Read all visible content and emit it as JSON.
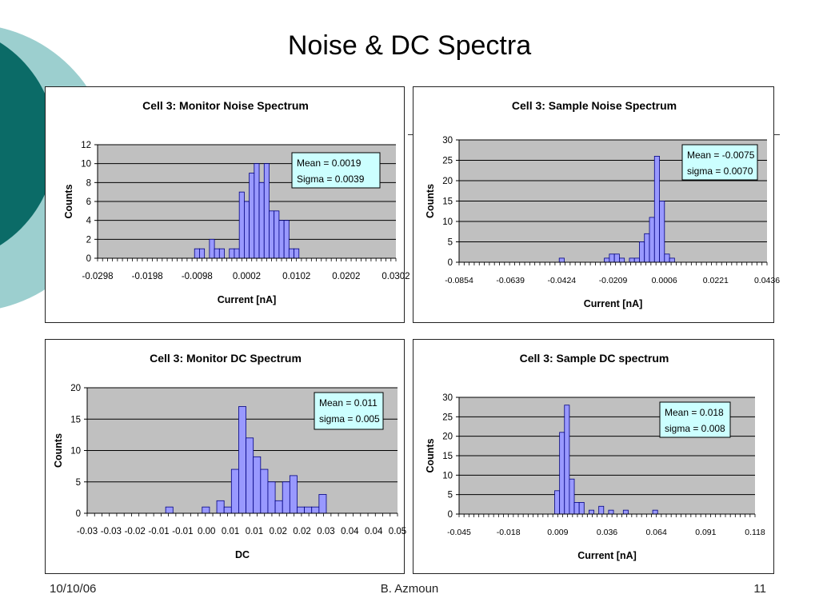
{
  "slide": {
    "title": "Noise & DC Spectra",
    "footer_date": "10/10/06",
    "footer_author": "B. Azmoun",
    "footer_page": "11"
  },
  "colors": {
    "bar_fill": "#9999ff",
    "bar_stroke": "#000080",
    "plot_bg": "#c0c0c0",
    "annotation_bg": "#ccffff",
    "deco_dark": "#0b6b67",
    "deco_light": "#9ccfcf"
  },
  "chart_data": [
    {
      "type": "bar",
      "title": "Cell 3: Monitor Noise Spectrum",
      "xlabel": "Current [nA]",
      "ylabel": "Counts",
      "ylim": [
        0,
        12
      ],
      "yticks": [
        "0",
        "2",
        "4",
        "6",
        "8",
        "10",
        "12"
      ],
      "xticks": [
        "-0.0298",
        "-0.0198",
        "-0.0098",
        "0.0002",
        "0.0102",
        "0.0202",
        "0.0302"
      ],
      "xlim": [
        -0.0298,
        0.0302
      ],
      "bin_width": 0.001,
      "bins": [
        {
          "x": -0.0098,
          "y": 1
        },
        {
          "x": -0.0088,
          "y": 1
        },
        {
          "x": -0.0068,
          "y": 2
        },
        {
          "x": -0.0058,
          "y": 1
        },
        {
          "x": -0.0048,
          "y": 1
        },
        {
          "x": -0.0028,
          "y": 1
        },
        {
          "x": -0.0018,
          "y": 1
        },
        {
          "x": -0.0008,
          "y": 7
        },
        {
          "x": 0.0002,
          "y": 6
        },
        {
          "x": 0.0012,
          "y": 9
        },
        {
          "x": 0.0022,
          "y": 10
        },
        {
          "x": 0.0032,
          "y": 8
        },
        {
          "x": 0.0042,
          "y": 10
        },
        {
          "x": 0.0052,
          "y": 5
        },
        {
          "x": 0.0062,
          "y": 5
        },
        {
          "x": 0.0072,
          "y": 4
        },
        {
          "x": 0.0082,
          "y": 4
        },
        {
          "x": 0.0092,
          "y": 1
        },
        {
          "x": 0.0102,
          "y": 1
        }
      ],
      "annotation": [
        "Mean = 0.0019",
        "Sigma = 0.0039"
      ],
      "annotation_pos": "top-right",
      "grid": true
    },
    {
      "type": "bar",
      "title": "Cell 3: Sample Noise Spectrum",
      "xlabel": "Current [nA]",
      "ylabel": "Counts",
      "ylim": [
        0,
        30
      ],
      "yticks": [
        "0",
        "5",
        "10",
        "15",
        "20",
        "25",
        "30"
      ],
      "xticks": [
        "-0.0854",
        "-0.0639",
        "-0.0424",
        "-0.0209",
        "0.0006",
        "0.0221",
        "0.0436"
      ],
      "xlim": [
        -0.0854,
        0.0436
      ],
      "bin_width": 0.0021,
      "bins": [
        {
          "x": -0.0424,
          "y": 1
        },
        {
          "x": -0.0235,
          "y": 1
        },
        {
          "x": -0.0214,
          "y": 2
        },
        {
          "x": -0.0193,
          "y": 2
        },
        {
          "x": -0.0172,
          "y": 1
        },
        {
          "x": -0.013,
          "y": 1
        },
        {
          "x": -0.0109,
          "y": 1
        },
        {
          "x": -0.0088,
          "y": 5
        },
        {
          "x": -0.0067,
          "y": 7
        },
        {
          "x": -0.0046,
          "y": 11
        },
        {
          "x": -0.0025,
          "y": 26
        },
        {
          "x": -0.0004,
          "y": 15
        },
        {
          "x": 0.0017,
          "y": 2
        },
        {
          "x": 0.0038,
          "y": 1
        }
      ],
      "annotation": [
        "Mean = -0.0075",
        "sigma = 0.0070"
      ],
      "annotation_pos": "top-right",
      "grid": true
    },
    {
      "type": "bar",
      "title": "Cell 3: Monitor DC Spectrum",
      "xlabel": "DC",
      "ylabel": "Counts",
      "ylim": [
        0,
        20
      ],
      "yticks": [
        "0",
        "5",
        "10",
        "15",
        "20"
      ],
      "xticks": [
        "-0.03",
        "-0.03",
        "-0.02",
        "-0.01",
        "-0.01",
        "0.00",
        "0.01",
        "0.01",
        "0.02",
        "0.02",
        "0.03",
        "0.04",
        "0.04",
        "0.05"
      ],
      "xlim": [
        -0.0325,
        0.0525
      ],
      "bin_width": 0.002,
      "bins": [
        {
          "x": -0.01,
          "y": 1
        },
        {
          "x": 0.0,
          "y": 1
        },
        {
          "x": 0.004,
          "y": 2
        },
        {
          "x": 0.006,
          "y": 1
        },
        {
          "x": 0.008,
          "y": 7
        },
        {
          "x": 0.01,
          "y": 17
        },
        {
          "x": 0.012,
          "y": 12
        },
        {
          "x": 0.014,
          "y": 9
        },
        {
          "x": 0.016,
          "y": 7
        },
        {
          "x": 0.018,
          "y": 5
        },
        {
          "x": 0.02,
          "y": 2
        },
        {
          "x": 0.022,
          "y": 5
        },
        {
          "x": 0.024,
          "y": 6
        },
        {
          "x": 0.026,
          "y": 1
        },
        {
          "x": 0.028,
          "y": 1
        },
        {
          "x": 0.03,
          "y": 1
        },
        {
          "x": 0.032,
          "y": 3
        }
      ],
      "annotation": [
        "Mean = 0.011",
        "sigma = 0.005"
      ],
      "annotation_pos": "top-right",
      "grid": true
    },
    {
      "type": "bar",
      "title": "Cell 3: Sample DC spectrum",
      "xlabel": "Current [nA]",
      "ylabel": "Counts",
      "ylim": [
        0,
        30
      ],
      "yticks": [
        "0",
        "5",
        "10",
        "15",
        "20",
        "25",
        "30"
      ],
      "xticks": [
        "-0.045",
        "-0.018",
        "0.009",
        "0.036",
        "0.064",
        "0.091",
        "0.118"
      ],
      "xlim": [
        -0.045,
        0.118
      ],
      "bin_width": 0.0027,
      "bins": [
        {
          "x": 0.009,
          "y": 6
        },
        {
          "x": 0.0117,
          "y": 21
        },
        {
          "x": 0.0144,
          "y": 28
        },
        {
          "x": 0.0171,
          "y": 9
        },
        {
          "x": 0.0198,
          "y": 3
        },
        {
          "x": 0.0225,
          "y": 3
        },
        {
          "x": 0.0279,
          "y": 1
        },
        {
          "x": 0.0333,
          "y": 2
        },
        {
          "x": 0.0387,
          "y": 1
        },
        {
          "x": 0.0468,
          "y": 1
        },
        {
          "x": 0.063,
          "y": 1
        }
      ],
      "annotation": [
        "Mean = 0.018",
        "sigma = 0.008"
      ],
      "annotation_pos": "top-right",
      "grid": true
    }
  ]
}
